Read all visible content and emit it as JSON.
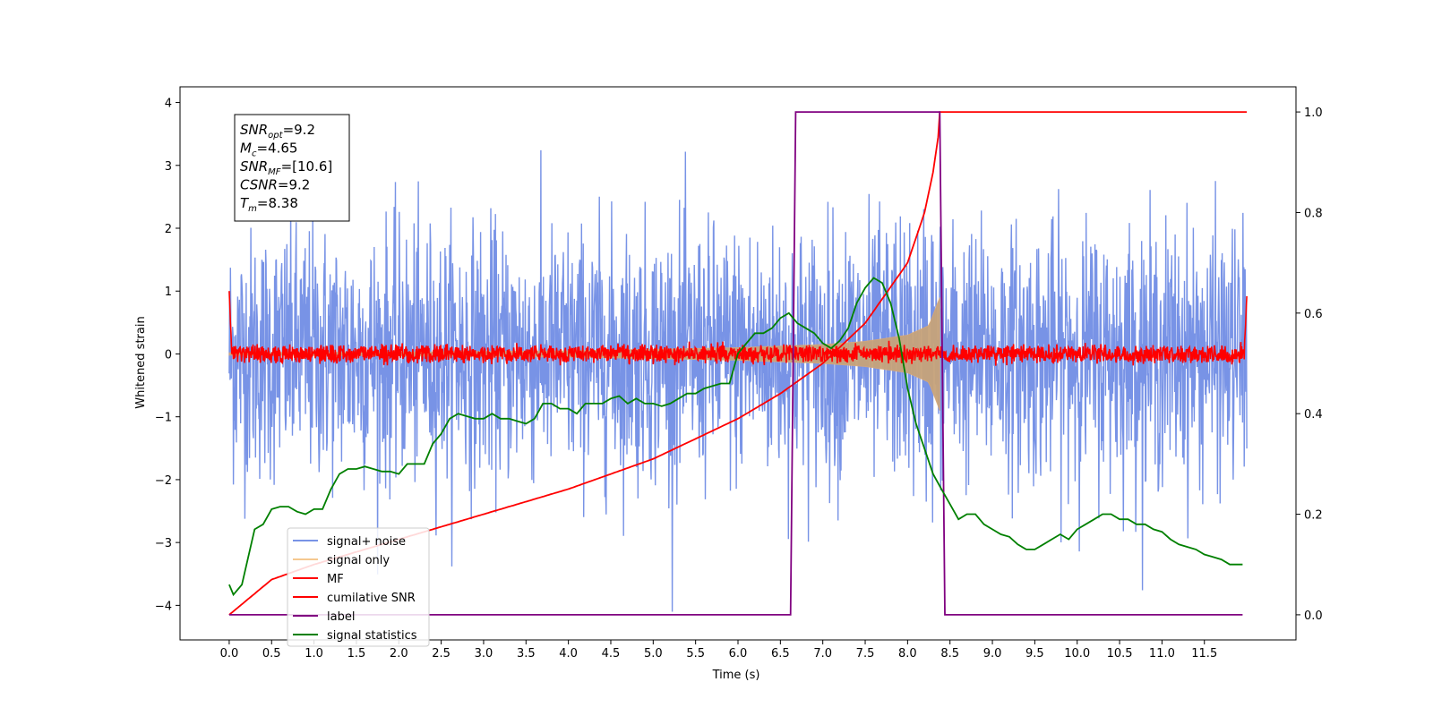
{
  "chart_data": {
    "type": "line",
    "title": "",
    "xlabel": "Time (s)",
    "ylabel": "Whitened strain",
    "xlim": [
      -0.58,
      12.58
    ],
    "ylim": [
      -4.55,
      4.25
    ],
    "y2lim": [
      -0.05,
      1.05
    ],
    "xticks": [
      0.0,
      0.5,
      1.0,
      1.5,
      2.0,
      2.5,
      3.0,
      3.5,
      4.0,
      4.5,
      5.0,
      5.5,
      6.0,
      6.5,
      7.0,
      7.5,
      8.0,
      8.5,
      9.0,
      9.5,
      10.0,
      10.5,
      11.0,
      11.5
    ],
    "xtick_labels": [
      "0.0",
      "0.5",
      "1.0",
      "1.5",
      "2.0",
      "2.5",
      "3.0",
      "3.5",
      "4.0",
      "4.5",
      "5.0",
      "5.5",
      "6.0",
      "6.5",
      "7.0",
      "7.5",
      "8.0",
      "8.5",
      "9.0",
      "9.5",
      "10.0",
      "10.5",
      "11.0",
      "11.5"
    ],
    "yticks": [
      -4,
      -3,
      -2,
      -1,
      0,
      1,
      2,
      3,
      4
    ],
    "ytick_labels": [
      "−4",
      "−3",
      "−2",
      "−1",
      "0",
      "1",
      "2",
      "3",
      "4"
    ],
    "y2ticks": [
      0.0,
      0.2,
      0.4,
      0.6,
      0.8,
      1.0
    ],
    "y2tick_labels": [
      "0.0",
      "0.2",
      "0.4",
      "0.6",
      "0.8",
      "1.0"
    ],
    "grid": false,
    "legend_position": "lower-left",
    "info_box": [
      {
        "main": "SNR",
        "sub": "opt",
        "rest": "=9.2"
      },
      {
        "main": "M",
        "sub": "c",
        "rest": "=4.65"
      },
      {
        "main": "SNR",
        "sub": "MF",
        "rest": "=[10.6]"
      },
      {
        "main": "CSNR",
        "sub": "",
        "rest": "=9.2"
      },
      {
        "main": "T",
        "sub": "m",
        "rest": "=8.38"
      }
    ],
    "series": [
      {
        "name": "signal+ noise",
        "color": "#7893e6",
        "axis": "left",
        "kind": "noise",
        "t_range": [
          0.0,
          12.0
        ],
        "amplitude_sd": 1.0,
        "observed_min": -4.15,
        "observed_max": 3.88
      },
      {
        "name": "signal only",
        "color": "#d8a878",
        "axis": "left",
        "kind": "chirp",
        "t_range": [
          0.0,
          8.38
        ],
        "envelope": [
          [
            0.0,
            0.02
          ],
          [
            2.0,
            0.03
          ],
          [
            4.0,
            0.05
          ],
          [
            6.0,
            0.1
          ],
          [
            7.0,
            0.15
          ],
          [
            7.5,
            0.2
          ],
          [
            8.0,
            0.3
          ],
          [
            8.25,
            0.45
          ],
          [
            8.38,
            0.9
          ]
        ]
      },
      {
        "name": "MF",
        "color": "#ff0000",
        "axis": "left",
        "kind": "matched-filter",
        "t_range": [
          0.0,
          12.0
        ],
        "amplitude": 0.12,
        "edge_values": [
          [
            0.0,
            1.0
          ],
          [
            12.0,
            0.92
          ]
        ]
      },
      {
        "name": "cumilative SNR",
        "color": "#ff0000",
        "axis": "right",
        "kind": "curve",
        "points": [
          [
            0.0,
            0.0
          ],
          [
            0.5,
            0.07
          ],
          [
            1.0,
            0.1
          ],
          [
            2.0,
            0.15
          ],
          [
            3.0,
            0.2
          ],
          [
            4.0,
            0.25
          ],
          [
            5.0,
            0.31
          ],
          [
            6.0,
            0.39
          ],
          [
            6.5,
            0.44
          ],
          [
            7.0,
            0.5
          ],
          [
            7.5,
            0.58
          ],
          [
            8.0,
            0.7
          ],
          [
            8.2,
            0.8
          ],
          [
            8.3,
            0.88
          ],
          [
            8.36,
            0.95
          ],
          [
            8.38,
            1.0
          ],
          [
            12.0,
            1.0
          ]
        ]
      },
      {
        "name": "label",
        "color": "#800080",
        "axis": "right",
        "kind": "step",
        "points": [
          [
            0.0,
            0.0
          ],
          [
            6.62,
            0.0
          ],
          [
            6.68,
            1.0
          ],
          [
            8.38,
            1.0
          ],
          [
            8.44,
            0.0
          ],
          [
            11.95,
            0.0
          ]
        ]
      },
      {
        "name": "signal statistics",
        "color": "#008000",
        "axis": "right",
        "kind": "curve",
        "points": [
          [
            0.0,
            0.06
          ],
          [
            0.05,
            0.04
          ],
          [
            0.15,
            0.06
          ],
          [
            0.3,
            0.17
          ],
          [
            0.4,
            0.18
          ],
          [
            0.5,
            0.21
          ],
          [
            0.6,
            0.215
          ],
          [
            0.7,
            0.215
          ],
          [
            0.8,
            0.205
          ],
          [
            0.9,
            0.2
          ],
          [
            1.0,
            0.21
          ],
          [
            1.1,
            0.21
          ],
          [
            1.2,
            0.25
          ],
          [
            1.3,
            0.28
          ],
          [
            1.4,
            0.29
          ],
          [
            1.5,
            0.29
          ],
          [
            1.6,
            0.295
          ],
          [
            1.7,
            0.29
          ],
          [
            1.8,
            0.285
          ],
          [
            1.9,
            0.285
          ],
          [
            2.0,
            0.28
          ],
          [
            2.1,
            0.3
          ],
          [
            2.2,
            0.3
          ],
          [
            2.3,
            0.3
          ],
          [
            2.4,
            0.34
          ],
          [
            2.5,
            0.36
          ],
          [
            2.6,
            0.39
          ],
          [
            2.7,
            0.4
          ],
          [
            2.8,
            0.395
          ],
          [
            2.9,
            0.39
          ],
          [
            3.0,
            0.39
          ],
          [
            3.1,
            0.4
          ],
          [
            3.2,
            0.39
          ],
          [
            3.3,
            0.39
          ],
          [
            3.4,
            0.385
          ],
          [
            3.5,
            0.38
          ],
          [
            3.6,
            0.39
          ],
          [
            3.7,
            0.42
          ],
          [
            3.8,
            0.42
          ],
          [
            3.9,
            0.41
          ],
          [
            4.0,
            0.41
          ],
          [
            4.1,
            0.4
          ],
          [
            4.2,
            0.42
          ],
          [
            4.3,
            0.42
          ],
          [
            4.4,
            0.42
          ],
          [
            4.5,
            0.43
          ],
          [
            4.6,
            0.435
          ],
          [
            4.7,
            0.42
          ],
          [
            4.8,
            0.43
          ],
          [
            4.9,
            0.42
          ],
          [
            5.0,
            0.42
          ],
          [
            5.1,
            0.415
          ],
          [
            5.2,
            0.42
          ],
          [
            5.3,
            0.43
          ],
          [
            5.4,
            0.44
          ],
          [
            5.5,
            0.44
          ],
          [
            5.6,
            0.45
          ],
          [
            5.7,
            0.455
          ],
          [
            5.8,
            0.46
          ],
          [
            5.9,
            0.46
          ],
          [
            6.0,
            0.52
          ],
          [
            6.1,
            0.54
          ],
          [
            6.2,
            0.56
          ],
          [
            6.3,
            0.56
          ],
          [
            6.4,
            0.57
          ],
          [
            6.5,
            0.59
          ],
          [
            6.6,
            0.6
          ],
          [
            6.7,
            0.58
          ],
          [
            6.8,
            0.57
          ],
          [
            6.9,
            0.56
          ],
          [
            7.0,
            0.54
          ],
          [
            7.1,
            0.53
          ],
          [
            7.2,
            0.545
          ],
          [
            7.3,
            0.57
          ],
          [
            7.4,
            0.62
          ],
          [
            7.5,
            0.65
          ],
          [
            7.6,
            0.67
          ],
          [
            7.7,
            0.66
          ],
          [
            7.8,
            0.62
          ],
          [
            7.9,
            0.55
          ],
          [
            8.0,
            0.45
          ],
          [
            8.1,
            0.38
          ],
          [
            8.2,
            0.33
          ],
          [
            8.3,
            0.28
          ],
          [
            8.4,
            0.25
          ],
          [
            8.5,
            0.22
          ],
          [
            8.6,
            0.19
          ],
          [
            8.7,
            0.2
          ],
          [
            8.8,
            0.2
          ],
          [
            8.9,
            0.18
          ],
          [
            9.0,
            0.17
          ],
          [
            9.1,
            0.16
          ],
          [
            9.2,
            0.155
          ],
          [
            9.3,
            0.14
          ],
          [
            9.4,
            0.13
          ],
          [
            9.5,
            0.13
          ],
          [
            9.6,
            0.14
          ],
          [
            9.7,
            0.15
          ],
          [
            9.8,
            0.16
          ],
          [
            9.9,
            0.15
          ],
          [
            10.0,
            0.17
          ],
          [
            10.1,
            0.18
          ],
          [
            10.2,
            0.19
          ],
          [
            10.3,
            0.2
          ],
          [
            10.4,
            0.2
          ],
          [
            10.5,
            0.19
          ],
          [
            10.6,
            0.19
          ],
          [
            10.7,
            0.18
          ],
          [
            10.8,
            0.18
          ],
          [
            10.9,
            0.17
          ],
          [
            11.0,
            0.165
          ],
          [
            11.1,
            0.15
          ],
          [
            11.2,
            0.14
          ],
          [
            11.3,
            0.135
          ],
          [
            11.4,
            0.13
          ],
          [
            11.5,
            0.12
          ],
          [
            11.6,
            0.115
          ],
          [
            11.7,
            0.11
          ],
          [
            11.8,
            0.1
          ],
          [
            11.9,
            0.1
          ],
          [
            11.95,
            0.1
          ]
        ]
      }
    ]
  }
}
